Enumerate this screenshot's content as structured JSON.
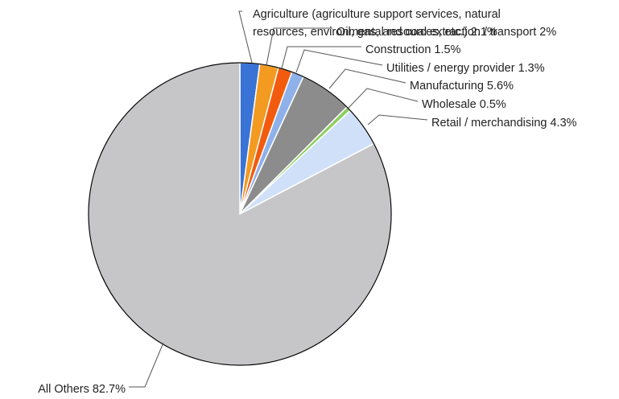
{
  "chart_data": {
    "type": "pie",
    "title": "",
    "start_angle_deg": 0,
    "direction": "clockwise",
    "slices": [
      {
        "label": "Agriculture (agriculture support services, natural resources, environmental resources, etc.) 2.1%",
        "label_lines": [
          "Agriculture (agriculture support services, natural",
          "resources, environmental resources, etc.) 2.1%"
        ],
        "value": 2.1,
        "color": "#3a73d6"
      },
      {
        "label": "Oil, gas, and coal extraction / transport 2%",
        "label_lines": [
          "Oil, gas, and coal extraction / transport 2%"
        ],
        "value": 2.0,
        "color": "#f39a21"
      },
      {
        "label": "Construction 1.5%",
        "label_lines": [
          "Construction 1.5%"
        ],
        "value": 1.5,
        "color": "#f25b0e"
      },
      {
        "label": "Utilities / energy provider 1.3%",
        "label_lines": [
          "Utilities / energy provider 1.3%"
        ],
        "value": 1.3,
        "color": "#8eb1ea"
      },
      {
        "label": "Manufacturing 5.6%",
        "label_lines": [
          "Manufacturing 5.6%"
        ],
        "value": 5.6,
        "color": "#8c8c8c"
      },
      {
        "label": "Wholesale 0.5%",
        "label_lines": [
          "Wholesale 0.5%"
        ],
        "value": 0.5,
        "color": "#8ccf5e"
      },
      {
        "label": "Retail / merchandising 4.3%",
        "label_lines": [
          "Retail / merchandising 4.3%"
        ],
        "value": 4.3,
        "color": "#cfe0f8"
      },
      {
        "label": "All Others 82.7%",
        "label_lines": [
          "All Others 82.7%"
        ],
        "value": 82.7,
        "color": "#c6c6c8"
      }
    ]
  }
}
